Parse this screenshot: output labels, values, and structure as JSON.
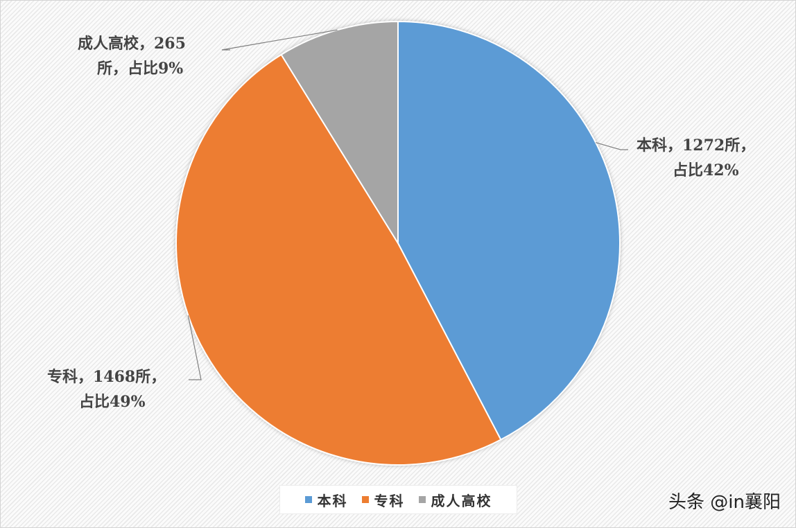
{
  "chart_data": {
    "type": "pie",
    "slices": [
      {
        "name": "本科",
        "value": 1272,
        "percent": 42,
        "color": "#5B9BD5",
        "label_line1": "本科，1272所，",
        "label_line2": "占比42%"
      },
      {
        "name": "专科",
        "value": 1468,
        "percent": 49,
        "color": "#ED7D31",
        "label_line1": "专科，1468所，",
        "label_line2": "占比49%"
      },
      {
        "name": "成人高校",
        "value": 265,
        "percent": 9,
        "color": "#A5A5A5",
        "label_line1": "成人高校，265",
        "label_line2": "所，占比9%"
      }
    ],
    "start_angle_deg": 0,
    "direction": "clockwise",
    "legend_position": "bottom"
  },
  "watermark": "头条 @in襄阳"
}
